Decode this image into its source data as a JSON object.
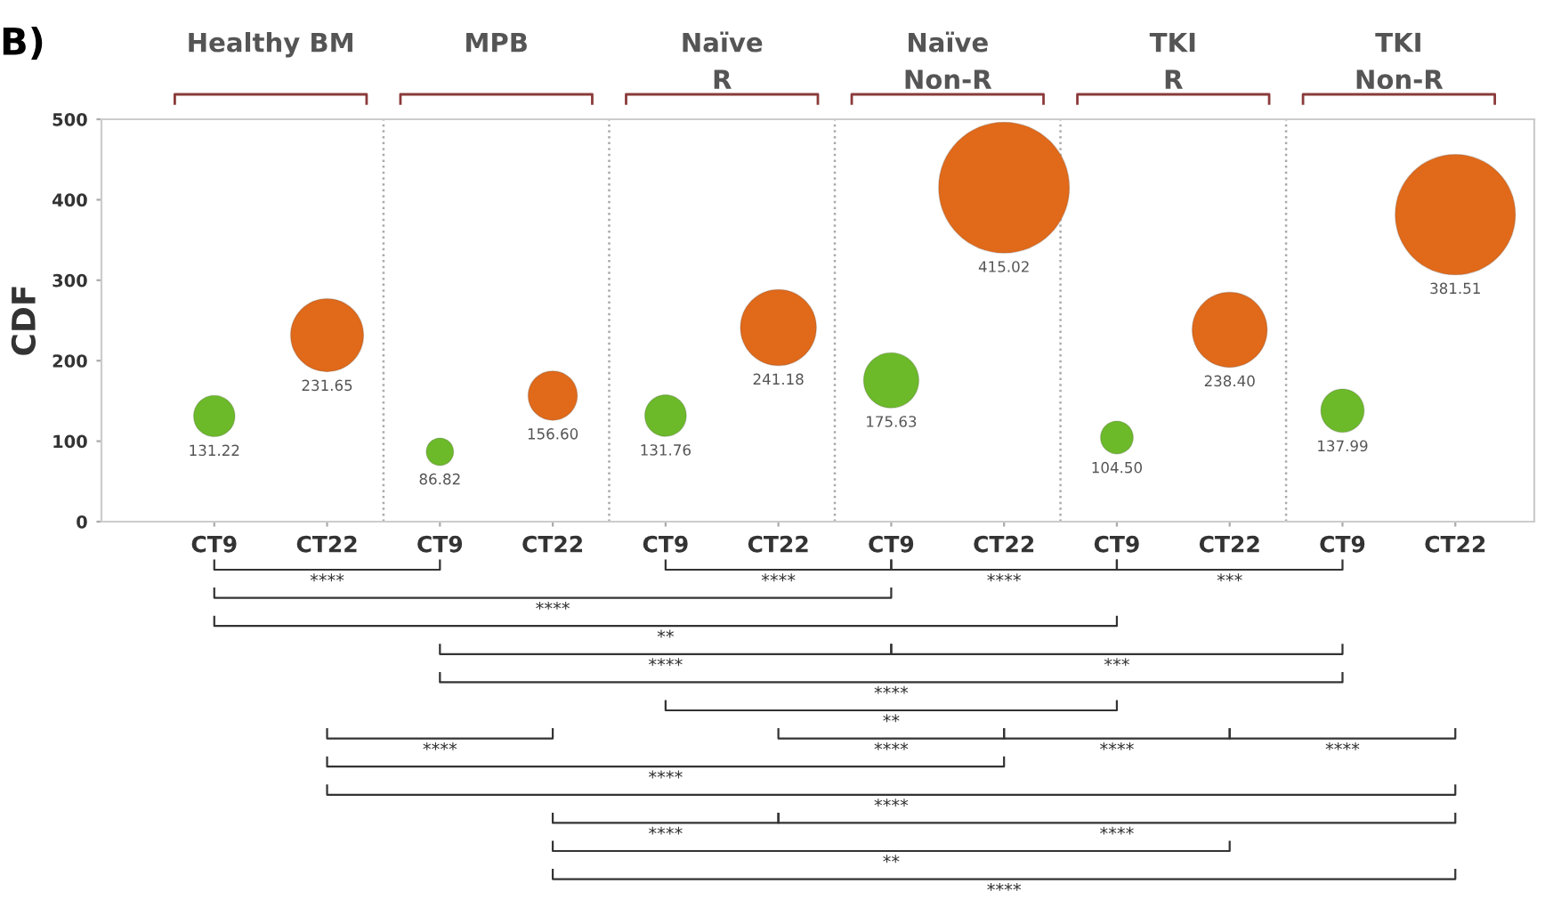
{
  "chart_data": {
    "type": "bubble",
    "ylabel": "CDF",
    "categories": [
      "CT9",
      "CT22",
      "CT9",
      "CT22",
      "CT9",
      "CT22",
      "CT9",
      "CT22",
      "CT9",
      "CT22",
      "CT9",
      "CT22"
    ],
    "values": [
      131.22,
      231.65,
      86.82,
      156.6,
      131.76,
      241.18,
      175.63,
      415.02,
      104.5,
      238.4,
      137.99,
      381.51
    ],
    "sizes": [
      0.1,
      0.312,
      0.044,
      0.142,
      0.101,
      0.338,
      0.179,
      1,
      0.063,
      0.33,
      0.11,
      0.845
    ],
    "colors": [
      "#6cb92a",
      "#e0691a",
      "#6cb92a",
      "#e0691a",
      "#6cb92a",
      "#e0691a",
      "#6cb92a",
      "#e0691a",
      "#6cb92a",
      "#e0691a",
      "#6cb92a",
      "#e0691a"
    ],
    "value_labels": [
      "131.22",
      "231.65",
      "86.82",
      "156.60",
      "131.76",
      "241.18",
      "175.63",
      "415.02",
      "104.50",
      "238.40",
      "137.99",
      "381.51"
    ],
    "ylim": [
      0,
      500
    ],
    "yticks": [
      0,
      100,
      200,
      300,
      400,
      500
    ],
    "grid": false,
    "annotations": [
      "B)",
      "Healthy BM",
      "MPB",
      "Naïve\nR",
      "Naïve\nNon-R",
      "TKI\nR",
      "TKI\nNon-R",
      "****",
      "****",
      "****",
      "***",
      "****",
      "**",
      "****",
      "***",
      "****",
      "**",
      "****",
      "****",
      "****",
      "****",
      "****",
      "****",
      "****",
      "****",
      "**",
      "****"
    ]
  }
}
